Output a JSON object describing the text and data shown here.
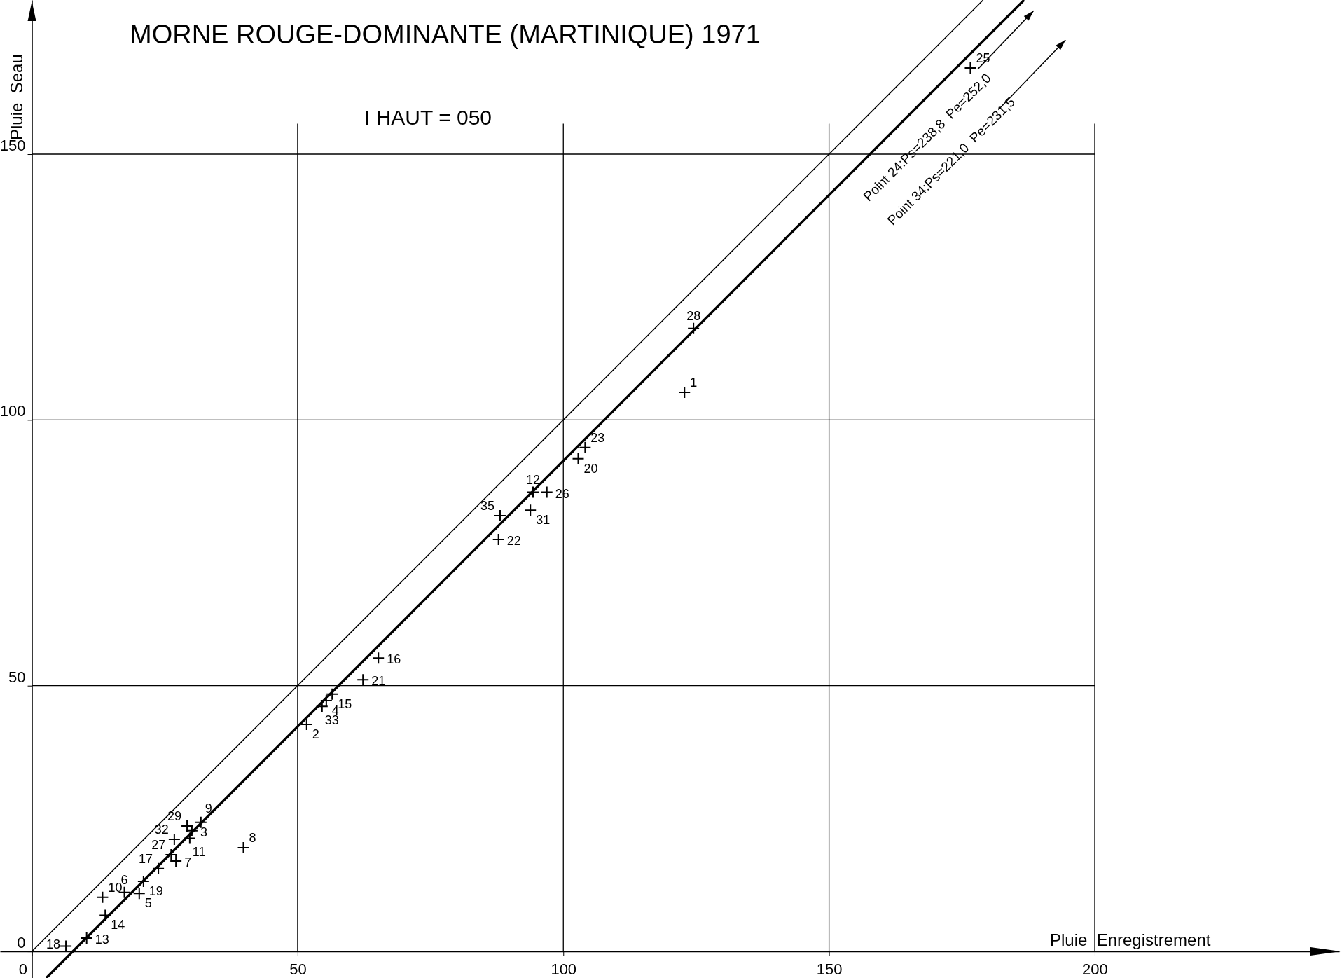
{
  "chart_data": {
    "type": "scatter",
    "title": "MORNE ROUGE-DOMINANTE (MARTINIQUE) 1971",
    "subtitle": "I HAUT = 050",
    "xlabel": "Pluie  Enregistrement",
    "ylabel": "Pluie  Seau",
    "xlim": [
      -6,
      246
    ],
    "ylim": [
      -5,
      179
    ],
    "xticks": [
      0,
      50,
      100,
      150,
      200
    ],
    "yticks": [
      0,
      50,
      100,
      150
    ],
    "grid": true,
    "series": [
      {
        "color": "#000000",
        "marker": "cross",
        "x": [
          122.8,
          51.7,
          30.1,
          55.4,
          20.2,
          17.4,
          27.1,
          39.8,
          31.8,
          13.3,
          29.7,
          94.3,
          10.3,
          13.8,
          56.5,
          65.2,
          23.8,
          6.4,
          21.0,
          102.8,
          62.3,
          87.8,
          104.1,
          176.6,
          96.9,
          26.2,
          124.5,
          29.2,
          93.8,
          26.8,
          54.6,
          88.1
        ],
        "values": [
          105.2,
          42.7,
          22.7,
          47.2,
          10.9,
          11.1,
          17.0,
          19.5,
          24.3,
          10.2,
          21.3,
          86.4,
          2.5,
          6.8,
          48.4,
          55.2,
          15.6,
          1.0,
          13.2,
          92.7,
          51.1,
          77.5,
          94.8,
          166.2,
          86.4,
          18.2,
          117.2,
          23.6,
          83.0,
          21.1,
          46.1,
          82.0
        ]
      },
      {
        "type": "line",
        "color": "#000000",
        "line_style": "solid",
        "x": [
          0,
          179
        ],
        "values": [
          0,
          179
        ]
      },
      {
        "type": "line",
        "color": "#000000",
        "line_style": "solid",
        "x": [
          2.7,
          186.7
        ],
        "values": [
          -5,
          179
        ]
      }
    ],
    "annotations": [
      "Point 24:Ps=238,8  Pe=252,0",
      "Point 34:Ps=221,0  Pe=231,5",
      {
        "text": "1",
        "x": 122.8,
        "y": 105.2
      },
      {
        "text": "2",
        "x": 51.7,
        "y": 42.7
      },
      {
        "text": "3",
        "x": 30.1,
        "y": 22.7
      },
      {
        "text": "4",
        "x": 55.4,
        "y": 47.2
      },
      {
        "text": "5",
        "x": 20.2,
        "y": 10.9
      },
      {
        "text": "6",
        "x": 17.4,
        "y": 11.1
      },
      {
        "text": "7",
        "x": 27.1,
        "y": 17.0
      },
      {
        "text": "8",
        "x": 39.8,
        "y": 19.5
      },
      {
        "text": "9",
        "x": 31.8,
        "y": 24.3
      },
      {
        "text": "10",
        "x": 13.3,
        "y": 10.2
      },
      {
        "text": "11",
        "x": 29.7,
        "y": 21.3
      },
      {
        "text": "12",
        "x": 94.3,
        "y": 86.4
      },
      {
        "text": "13",
        "x": 10.3,
        "y": 2.5
      },
      {
        "text": "14",
        "x": 13.8,
        "y": 6.8
      },
      {
        "text": "15",
        "x": 56.5,
        "y": 48.4
      },
      {
        "text": "16",
        "x": 65.2,
        "y": 55.2
      },
      {
        "text": "17",
        "x": 23.8,
        "y": 15.6
      },
      {
        "text": "18",
        "x": 6.4,
        "y": 1.0
      },
      {
        "text": "19",
        "x": 21.0,
        "y": 13.2
      },
      {
        "text": "20",
        "x": 102.8,
        "y": 92.7
      },
      {
        "text": "21",
        "x": 62.3,
        "y": 51.1
      },
      {
        "text": "22",
        "x": 87.8,
        "y": 77.5
      },
      {
        "text": "23",
        "x": 104.1,
        "y": 94.8
      },
      {
        "text": "25",
        "x": 176.6,
        "y": 166.2
      },
      {
        "text": "26",
        "x": 96.9,
        "y": 86.4
      },
      {
        "text": "27",
        "x": 26.2,
        "y": 18.2
      },
      {
        "text": "28",
        "x": 124.5,
        "y": 117.2
      },
      {
        "text": "29",
        "x": 29.2,
        "y": 23.6
      },
      {
        "text": "31",
        "x": 93.8,
        "y": 83.0
      },
      {
        "text": "32",
        "x": 26.8,
        "y": 21.1
      },
      {
        "text": "33",
        "x": 54.6,
        "y": 46.1
      },
      {
        "text": "35",
        "x": 88.1,
        "y": 82.0
      }
    ]
  }
}
